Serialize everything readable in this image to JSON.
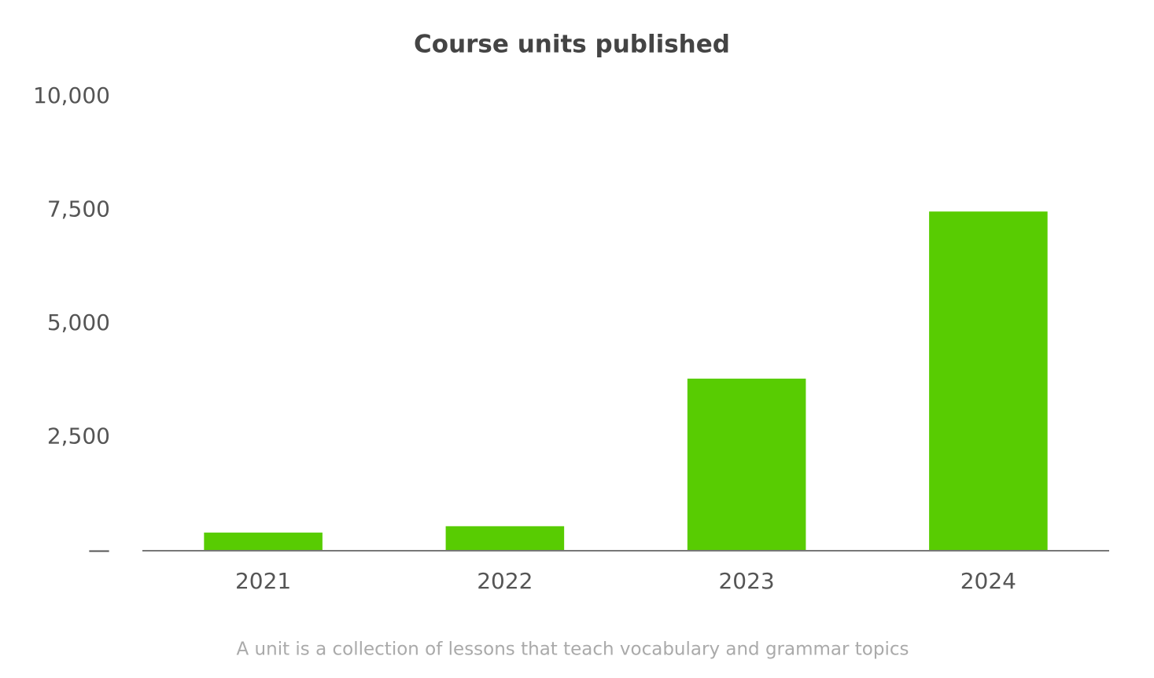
{
  "chart_data": {
    "type": "bar",
    "title": "Course units published",
    "categories": [
      "2021",
      "2022",
      "2023",
      "2024"
    ],
    "values": [
      400,
      540,
      3790,
      7470
    ],
    "color": "#58cc02",
    "ylim": [
      0,
      10000
    ],
    "yticks": [
      {
        "value": 0,
        "label": "—"
      },
      {
        "value": 2500,
        "label": "2,500"
      },
      {
        "value": 5000,
        "label": "5,000"
      },
      {
        "value": 7500,
        "label": "7,500"
      },
      {
        "value": 10000,
        "label": "10,000"
      }
    ],
    "grid": false,
    "footnote": "A unit is a collection of lessons that teach vocabulary and grammar topics"
  }
}
